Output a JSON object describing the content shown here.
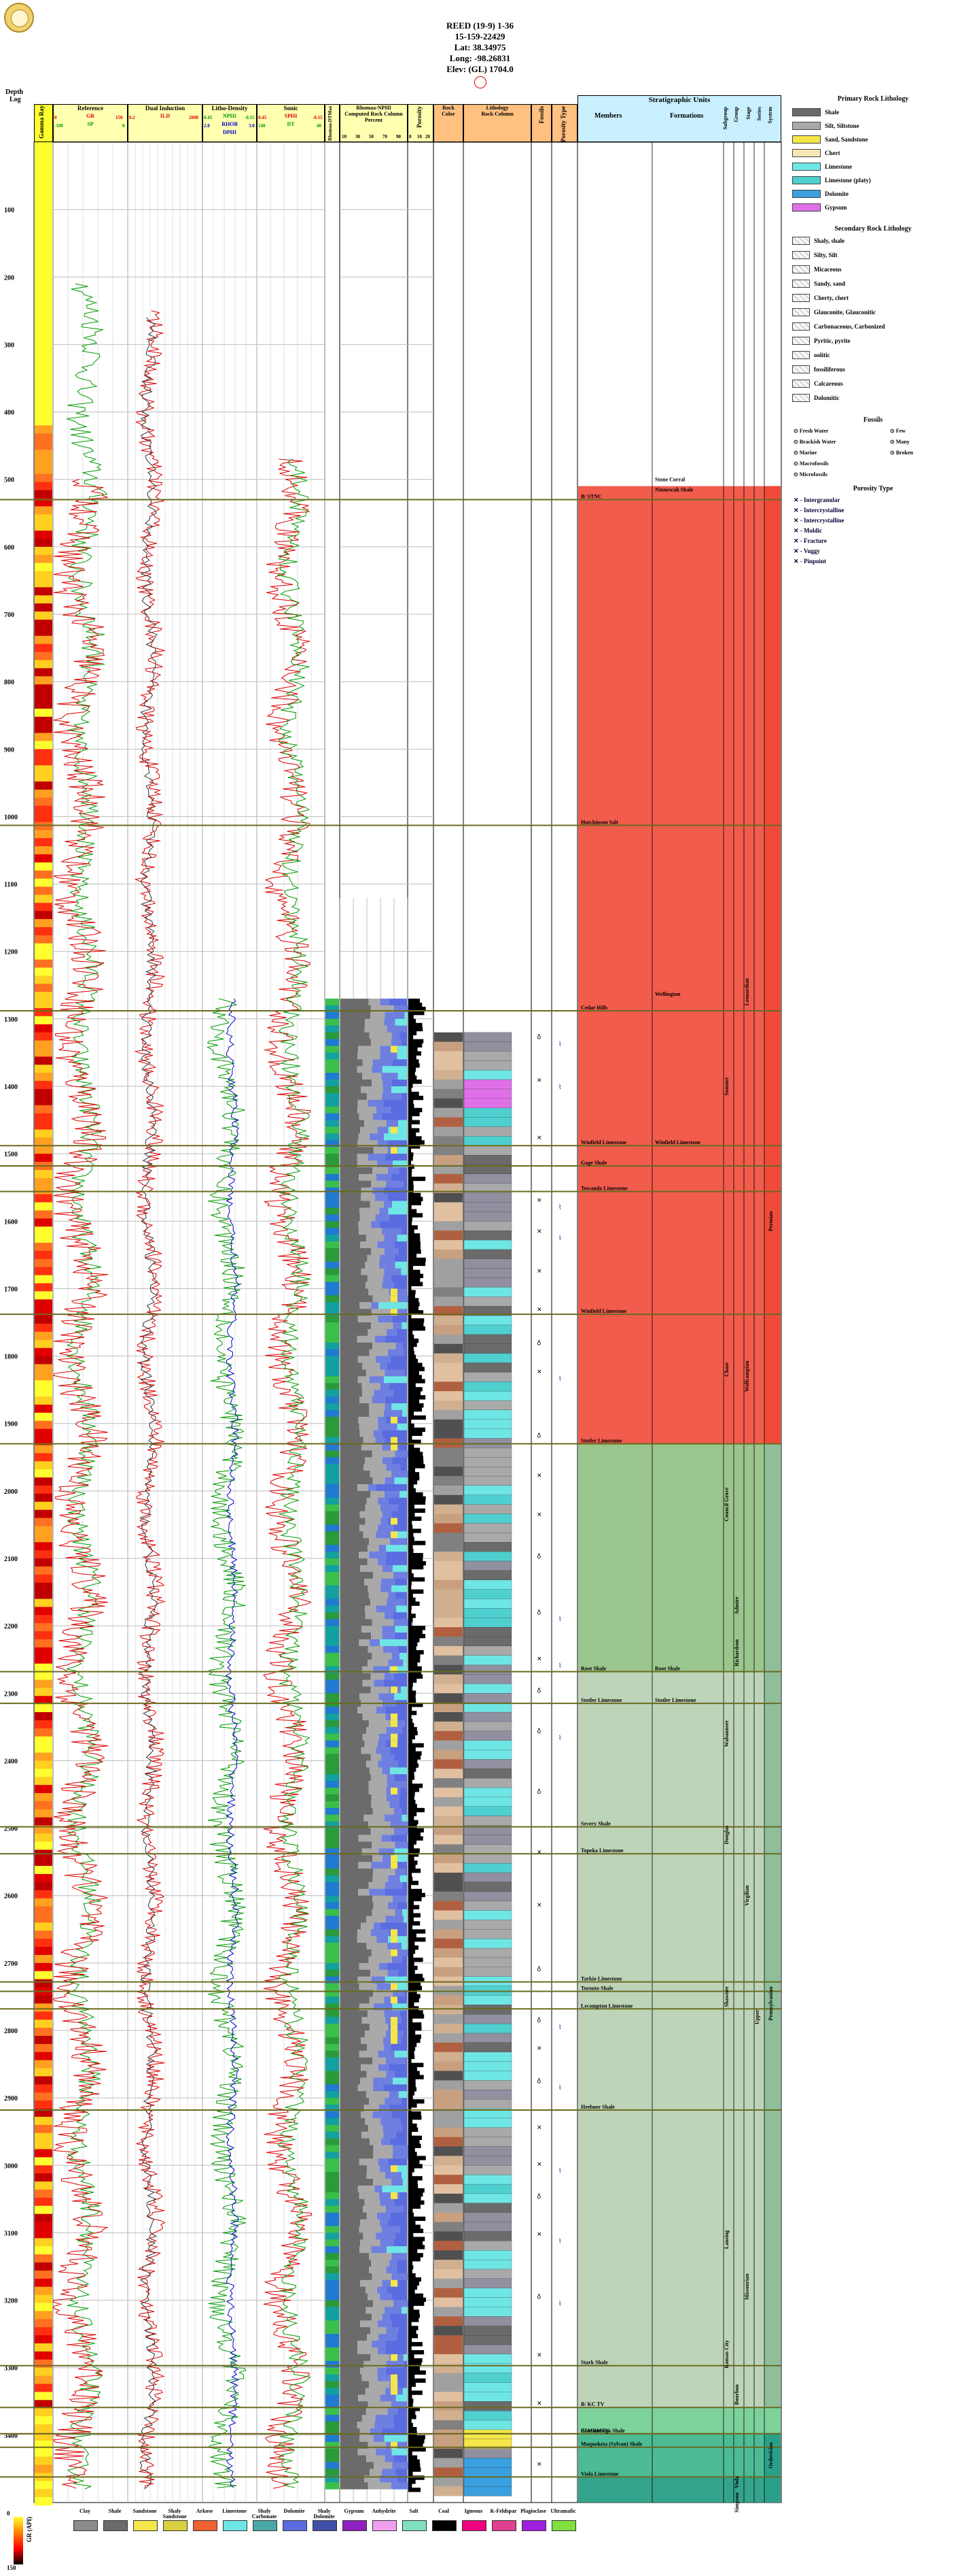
{
  "well": {
    "name": "REED (19-9) 1-36",
    "api": "15-159-22429",
    "lat": "Lat: 38.34975",
    "long": "Long: -98.26831",
    "elev": "Elev: (GL) 1704.0"
  },
  "headers": {
    "depth": "Depth",
    "log": "Log",
    "gamma": "Gamma Ray",
    "reference": "Reference",
    "gr": "GR",
    "sp": "SP",
    "dual_induction": "Dual Induction",
    "ild": "ILD",
    "litho_density": "Litho-Density",
    "nphi": "NPHI",
    "rhob": "RHOB",
    "dphi": "DPHI",
    "sonic": "Sonic",
    "sphi": "SPHI",
    "dt": "DT",
    "rhomaa": "Rhomaa-DTMaa",
    "composite": "Rhomaa-NPHI",
    "composite_sub": "Computed Rock Column",
    "percent": "Percent",
    "porosity": "Porosity",
    "rock": "Rock",
    "rock_color": "Color",
    "lithology": "Lithology",
    "rock_column": "Rock Column",
    "fossils": "Fossils",
    "porosity_type": "Porosity Type",
    "strat_units": "Stratigraphic Units",
    "members": "Members",
    "formations": "Formations",
    "subgroup": "Subgroup",
    "group": "Group",
    "stage": "Stage",
    "series": "Series",
    "system": "System"
  },
  "scales": {
    "gr_min": "0",
    "gr_max": "150",
    "sp_min": "-100",
    "sp_max": "0",
    "ild_min": "0.2",
    "ild_max": "2000",
    "nphi_min": "0.45",
    "nphi_max": "-0.15",
    "rhob_min": "2.0",
    "rhob_max": "3.0",
    "sphi_min": "0.45",
    "sphi_max": "-0.15",
    "dt_min": "140",
    "dt_max": "40",
    "pct_ticks": [
      "10",
      "30",
      "50",
      "70",
      "90"
    ],
    "por_ticks": [
      "0",
      "10",
      "20"
    ]
  },
  "depths": [
    "100",
    "200",
    "300",
    "400",
    "500",
    "600",
    "700",
    "800",
    "900",
    "1000",
    "1100",
    "1200",
    "1300",
    "1400",
    "1500",
    "1600",
    "1700",
    "1800",
    "1900",
    "2000",
    "2100",
    "2200",
    "2300",
    "2400",
    "2500",
    "2600",
    "2700",
    "2800",
    "2900",
    "3000",
    "3100",
    "3200",
    "3300",
    "3400"
  ],
  "members": [
    {
      "label": "B/ STNC",
      "depth": 530
    },
    {
      "label": "Hutchinson Salt",
      "depth": 1013
    },
    {
      "label": "Cedar Hills",
      "depth": 1288
    },
    {
      "label": "Winfield Limestone",
      "depth": 1488
    },
    {
      "label": "Gage Shale",
      "depth": 1518
    },
    {
      "label": "Towanda Limestone",
      "depth": 1556
    },
    {
      "label": "Winfield Limestone",
      "depth": 1738
    },
    {
      "label": "Stotler Limestone",
      "depth": 1930
    },
    {
      "label": "Root Shale",
      "depth": 2268
    },
    {
      "label": "Stotler Limestone",
      "depth": 2315
    },
    {
      "label": "Severy Shale",
      "depth": 2498
    },
    {
      "label": "Topeka Limestone",
      "depth": 2538
    },
    {
      "label": "Tarkio Limestone",
      "depth": 2728
    },
    {
      "label": "Toronto Shale",
      "depth": 2742
    },
    {
      "label": "Lecompton Limestone",
      "depth": 2768
    },
    {
      "label": "Heebner Shale",
      "depth": 2918
    },
    {
      "label": "Stark Shale",
      "depth": 3297
    },
    {
      "label": "B/ KC TV",
      "depth": 3359
    },
    {
      "label": "B/ MRMTN",
      "depth": 3398
    },
    {
      "label": "Chattanooga Shale",
      "depth": 3398
    },
    {
      "label": "Maquoketa (Sylvan) Shale",
      "depth": 3418
    },
    {
      "label": "Viola Limestone",
      "depth": 3462
    }
  ],
  "formations": [
    {
      "label": "Stone Corral",
      "depth": 505
    },
    {
      "label": "Wellington",
      "depth": 1268
    },
    {
      "label": "Winfield Limestone",
      "depth": 1488
    },
    {
      "label": "Stotler Limestone",
      "depth": 2315
    },
    {
      "label": "Root Shale",
      "depth": 2268
    },
    {
      "label": "Ninnescah Shale",
      "depth": 520
    }
  ],
  "vertical_labels": [
    {
      "label": "Sumner",
      "col": "subgroup",
      "depth": 1400
    },
    {
      "label": "Leonardian",
      "col": "stage",
      "depth": 1260
    },
    {
      "label": "Chase",
      "col": "subgroup",
      "depth": 1820
    },
    {
      "label": "Council Grove",
      "col": "subgroup",
      "depth": 2020
    },
    {
      "label": "Wolfcampian",
      "col": "stage",
      "depth": 1830
    },
    {
      "label": "Permian",
      "col": "system",
      "depth": 1600
    },
    {
      "label": "Admire",
      "col": "group",
      "depth": 2170
    },
    {
      "label": "Richardson",
      "col": "group",
      "depth": 2240
    },
    {
      "label": "Wabaunsee",
      "col": "subgroup",
      "depth": 2360
    },
    {
      "label": "Shawnee",
      "col": "subgroup",
      "depth": 2750
    },
    {
      "label": "Virgilian",
      "col": "stage",
      "depth": 2600
    },
    {
      "label": "Douglas",
      "col": "subgroup",
      "depth": 2510
    },
    {
      "label": "Pennsylvanian",
      "col": "system",
      "depth": 2760
    },
    {
      "label": "Lansing",
      "col": "subgroup",
      "depth": 3110
    },
    {
      "label": "Kansas City",
      "col": "subgroup",
      "depth": 3280
    },
    {
      "label": "Missourian",
      "col": "stage",
      "depth": 3180
    },
    {
      "label": "Upper",
      "col": "series",
      "depth": 2780
    },
    {
      "label": "Bourbon",
      "col": "group",
      "depth": 3340
    },
    {
      "label": "Ordovician",
      "col": "system",
      "depth": 3430
    },
    {
      "label": "Viola",
      "col": "group",
      "depth": 3470
    },
    {
      "label": "Simpson",
      "col": "group",
      "depth": 3500
    }
  ],
  "legend": {
    "primary_title": "Primary Rock Lithology",
    "primary": [
      {
        "label": "Shale",
        "color": "#6b6b6b"
      },
      {
        "label": "Silt, Siltstone",
        "color": "#a9a9a9"
      },
      {
        "label": "Sand, Sandstone",
        "color": "#f5e64a"
      },
      {
        "label": "Chert",
        "color": "#f7e7b4"
      },
      {
        "label": "Limestone",
        "color": "#6fe6e6"
      },
      {
        "label": "Limestone (platy)",
        "color": "#4fcfd0"
      },
      {
        "label": "Dolomite",
        "color": "#3aa0e0"
      },
      {
        "label": "Gypsum",
        "color": "#e070e8"
      }
    ],
    "secondary_title": "Secondary Rock Lithology",
    "secondary": [
      "Shaly, shale",
      "Silty, Silt",
      "Micaceous",
      "Sandy, sand",
      "Cherty, chert",
      "Glauconite, Glauconitic",
      "Carbonaceous, Carbonized",
      "Pyritic, pyrite",
      "oolitic",
      "fossiliferous",
      "Calcareous",
      "Dolomitic"
    ],
    "fossils_title": "Fossils",
    "fossils": [
      "Fresh Water",
      "Brackish Water",
      "Marine",
      "Macrofossils",
      "Microfossils",
      "Few",
      "Many",
      "Broken"
    ],
    "porosity_title": "Porosity Type",
    "porosity": [
      "Intergranular",
      "Intercrystalline",
      "Intercrystalline",
      "Moldic",
      "Fracture",
      "Vuggy",
      "Pinpoint"
    ]
  },
  "bottom_legend": [
    {
      "label": "Clay",
      "color": "#8c8c8c"
    },
    {
      "label": "Shale",
      "color": "#6b6b6b"
    },
    {
      "label": "Sandstone",
      "color": "#f5e64a"
    },
    {
      "label": "Shaly Sandstone",
      "color": "#d9d040"
    },
    {
      "label": "Arkose",
      "color": "#f06030"
    },
    {
      "label": "Limestone",
      "color": "#6fe6e6"
    },
    {
      "label": "Shaly Carbonate",
      "color": "#4aa8a8"
    },
    {
      "label": "Dolomite",
      "color": "#5a6ce0"
    },
    {
      "label": "Shaly Dolomite",
      "color": "#4050a8"
    },
    {
      "label": "Gypsum",
      "color": "#9020c0"
    },
    {
      "label": "Anhydrite",
      "color": "#f0a0f0"
    },
    {
      "label": "Salt",
      "color": "#80e0c0"
    },
    {
      "label": "Coal",
      "color": "#000000"
    },
    {
      "label": "Igneous",
      "color": "#f00080"
    },
    {
      "label": "K-Feldspar",
      "color": "#e04090"
    },
    {
      "label": "Plagioclase",
      "color": "#a020e0"
    },
    {
      "label": "Ultramafic",
      "color": "#80e040"
    }
  ],
  "gamma_scale": {
    "title": "GR (API)",
    "min": "0",
    "max": "150"
  },
  "colors": {
    "permian": "#f0473a",
    "penn": "#b7cfb0",
    "ordo": "#2aa08a",
    "miss": "#6fcc90"
  }
}
